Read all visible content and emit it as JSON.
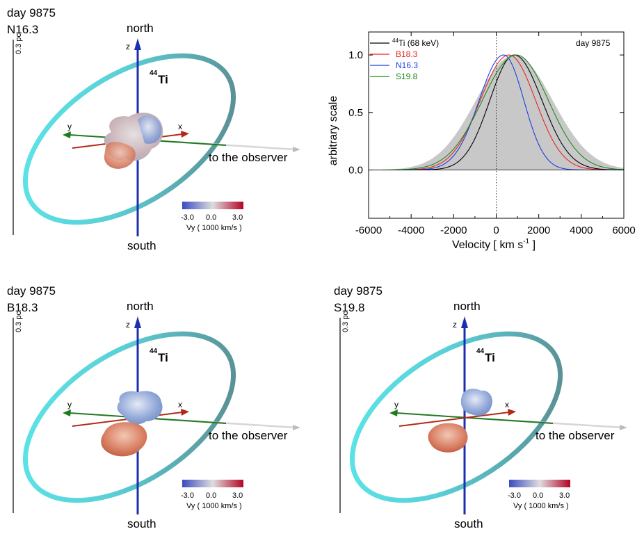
{
  "panels": [
    {
      "day": "day 9875",
      "model": "N16.3"
    },
    {
      "day": "day 9875",
      "model": "B18.3"
    },
    {
      "day": "day 9875",
      "model": "S19.8"
    }
  ],
  "scene_labels": {
    "north": "north",
    "south": "south",
    "z": "z",
    "x": "x",
    "y": "y",
    "observer": "to the observer",
    "scale_bar": "0.3 pc",
    "element_sup": "44",
    "element": "Ti"
  },
  "colorbar": {
    "label": "Vy ( 1000 km/s )",
    "ticks": [
      "-3.0",
      "0.0",
      "3.0"
    ],
    "low_color": "#3b4cc0",
    "mid_color": "#dddddd",
    "high_color": "#b40426"
  },
  "colors": {
    "ring_front": "#5be8ec",
    "ring_back": "#5a7e82",
    "z_axis": "#1c2fb0",
    "x_axis": "#b02a17",
    "y_axis": "#1f7a1f",
    "observer_arrow": "#cfcfcf"
  },
  "chart_data": {
    "type": "line",
    "title": "",
    "annotation": "day 9875",
    "xlabel": "Velocity [ km s",
    "xlabel_sup": "-1",
    "xlabel_end": " ]",
    "ylabel": "arbitrary scale",
    "xlim": [
      -6000,
      6000
    ],
    "ylim": [
      -0.42,
      1.2
    ],
    "xticks": [
      -6000,
      -4000,
      -2000,
      0,
      2000,
      4000,
      6000
    ],
    "yticks": [
      0.0,
      0.5,
      1.0
    ],
    "ytick_labels": [
      "0.0",
      "0.5",
      "1.0"
    ],
    "zero_line": true,
    "filled_band": {
      "center": 850,
      "sigma": 1800,
      "color": "#c8c8c8"
    },
    "legend": [
      {
        "label_sup": "44",
        "label": "Ti (68 keV)",
        "color": "#000000"
      },
      {
        "label_sup": "",
        "label": "B18.3",
        "color": "#e8261e"
      },
      {
        "label_sup": "",
        "label": "N16.3",
        "color": "#1d3fe0"
      },
      {
        "label_sup": "",
        "label": "S19.8",
        "color": "#1d8a1d"
      }
    ],
    "series": [
      {
        "name": "44Ti (68 keV)",
        "color": "#000000",
        "center": 850,
        "sigma_left": 1150,
        "sigma_right": 1300
      },
      {
        "name": "B18.3",
        "color": "#e8261e",
        "center": 600,
        "sigma_left": 1350,
        "sigma_right": 1250
      },
      {
        "name": "N16.3",
        "color": "#1d3fe0",
        "center": 350,
        "sigma_left": 1150,
        "sigma_right": 950
      },
      {
        "name": "S19.8",
        "color": "#1d8a1d",
        "center": 950,
        "sigma_left": 1600,
        "sigma_right": 1500
      }
    ]
  }
}
